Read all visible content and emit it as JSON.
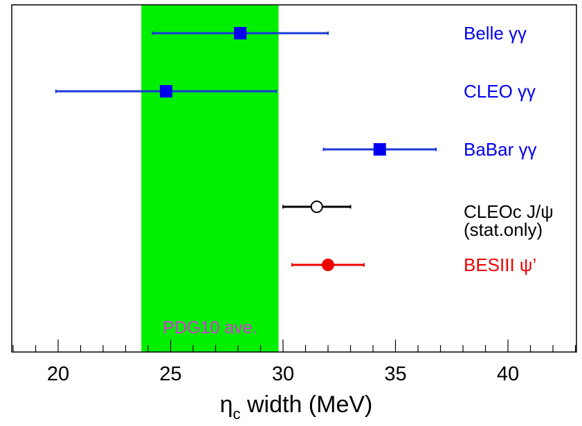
{
  "chart_data": {
    "type": "scatter",
    "xlabel_main": "η",
    "xlabel_sub": "c",
    "xlabel_rest": " width (MeV)",
    "xlim": [
      18,
      43
    ],
    "xticks": [
      20,
      25,
      30,
      35,
      40
    ],
    "xtick_labels": [
      "20",
      "25",
      "30",
      "35",
      "40"
    ],
    "grid": false,
    "band": {
      "label": "PDG10 ave.",
      "x_low": 23.7,
      "x_high": 29.8,
      "color": "#00ee00",
      "label_color": "#dd33dd"
    },
    "series": [
      {
        "label": "Belle γγ",
        "value": 28.1,
        "err_low": 3.9,
        "err_high": 3.9,
        "marker": "square",
        "color": "#0000ee",
        "line_color": "#1a3ad8"
      },
      {
        "label": "CLEO γγ",
        "value": 24.8,
        "err_low": 4.9,
        "err_high": 4.9,
        "marker": "square",
        "color": "#0000ee",
        "line_color": "#1a3ad8"
      },
      {
        "label": "BaBar γγ",
        "value": 34.3,
        "err_low": 2.5,
        "err_high": 2.5,
        "marker": "square",
        "color": "#0000ee",
        "line_color": "#1a3ad8"
      },
      {
        "label": "CLEOc J/ψ",
        "label2": "(stat.only)",
        "value": 31.5,
        "err_low": 1.5,
        "err_high": 1.5,
        "marker": "open-circle",
        "color": "#000000",
        "line_color": "#000000"
      },
      {
        "label": "BESIII ψ’",
        "value": 32.0,
        "err_low": 1.6,
        "err_high": 1.6,
        "marker": "filled-circle",
        "color": "#ee0000",
        "line_color": "#ee0000"
      }
    ]
  }
}
